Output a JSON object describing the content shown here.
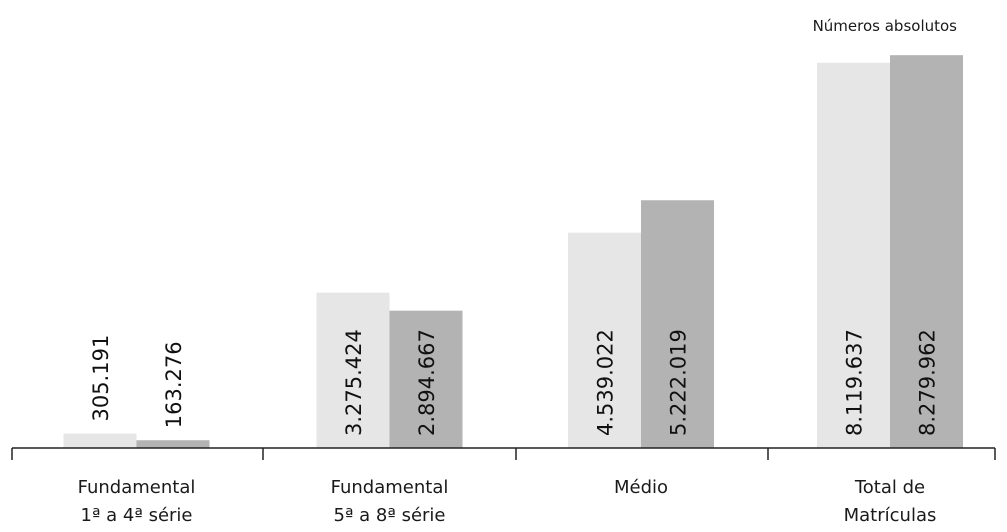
{
  "chart_data": {
    "type": "bar",
    "unit_note": "Números absolutos",
    "categories": [
      [
        "Fundamental",
        "1ª a 4ª série"
      ],
      [
        "Fundamental",
        "5ª a 8ª série"
      ],
      [
        "Médio"
      ],
      [
        "Total de",
        "Matrículas"
      ]
    ],
    "series": [
      {
        "color": "#e6e6e6",
        "values": [
          305191,
          3275424,
          4539022,
          8119637
        ],
        "labels": [
          "305.191",
          "3.275.424",
          "4.539.022",
          "8.119.637"
        ]
      },
      {
        "color": "#b3b3b3",
        "values": [
          163276,
          2894667,
          5222019,
          8279962
        ],
        "labels": [
          "163.276",
          "2.894.667",
          "5.222.019",
          "8.279.962"
        ]
      }
    ],
    "ylim": [
      0,
      8600000
    ],
    "grid": false,
    "legend": "none"
  }
}
